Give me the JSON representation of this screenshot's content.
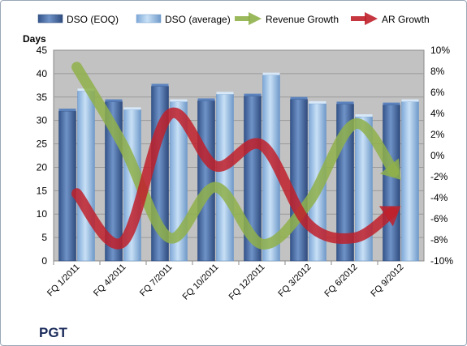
{
  "chart_data": {
    "type": "bar",
    "title": "",
    "company_label": "PGT",
    "ylabel_left": "Days",
    "left_axis": {
      "min": 0,
      "max": 45,
      "ticks": [
        "0",
        "5",
        "10",
        "15",
        "20",
        "25",
        "30",
        "35",
        "40",
        "45"
      ]
    },
    "right_axis": {
      "min": -10,
      "max": 10,
      "ticks": [
        "-10%",
        "-8%",
        "-6%",
        "-4%",
        "-2%",
        "0%",
        "2%",
        "4%",
        "6%",
        "8%",
        "10%"
      ]
    },
    "categories": [
      "FQ 1/2011",
      "FQ 4/2011",
      "FQ 7/2011",
      "FQ 10/2011",
      "FQ 12/2011",
      "FQ 3/2012",
      "FQ 6/2012",
      "FQ 9/2012"
    ],
    "series": [
      {
        "name": "DSO (EOQ)",
        "kind": "bar",
        "axis": "left",
        "color": "#4a6fa5",
        "values": [
          32,
          34,
          37.3,
          34.2,
          35.2,
          34.5,
          33.5,
          33.3
        ]
      },
      {
        "name": "DSO (average)",
        "kind": "bar",
        "axis": "left",
        "color": "#9ec4ea",
        "values": [
          36.3,
          32.3,
          34,
          35.6,
          39.7,
          33.6,
          30.8,
          34
        ]
      },
      {
        "name": "Revenue Growth",
        "kind": "line",
        "axis": "right",
        "color": "#8fb04a",
        "values": [
          8.4,
          1.0,
          -7.8,
          -3.0,
          -8.4,
          -4.5,
          3.0,
          -2.3
        ]
      },
      {
        "name": "AR Growth",
        "kind": "line",
        "axis": "right",
        "color": "#c0202a",
        "values": [
          -3.6,
          -8.2,
          3.9,
          -1.0,
          1.0,
          -6.5,
          -7.8,
          -4.8
        ]
      }
    ],
    "grid": true,
    "legend": "top"
  }
}
